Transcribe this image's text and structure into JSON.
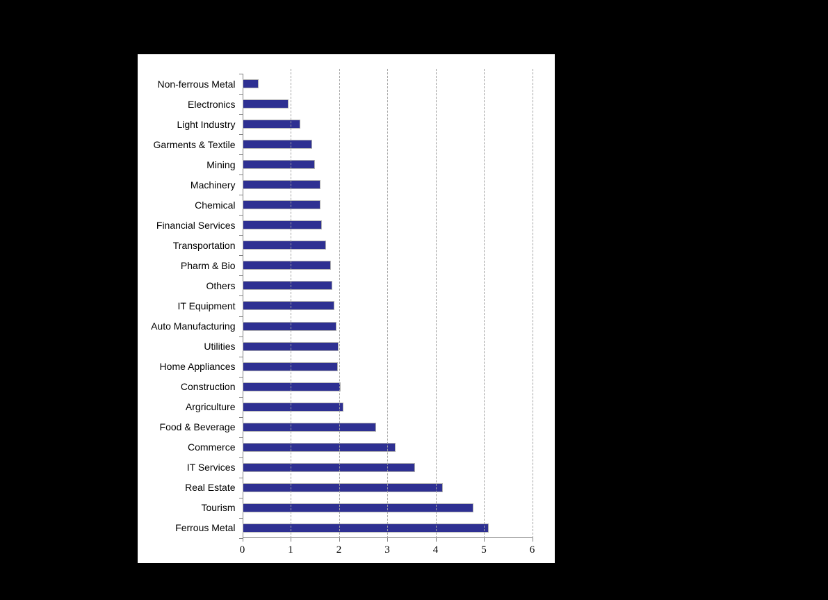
{
  "colors": {
    "page_background": "#000000",
    "panel_background": "#ffffff",
    "bar_fill": "#2e3092",
    "bar_border": "#b3b3b3",
    "gridline": "#a3a3a3",
    "axis": "#808080",
    "text": "#000000"
  },
  "chart_data": {
    "type": "bar",
    "orientation": "horizontal",
    "title": "",
    "xlabel": "",
    "ylabel": "",
    "xlim": [
      0,
      6
    ],
    "xticks": [
      0,
      1,
      2,
      3,
      4,
      5,
      6
    ],
    "grid": "vertical-dashed",
    "legend": "none",
    "categories": [
      "Non-ferrous Metal",
      "Electronics",
      "Light Industry",
      "Garments & Textile",
      "Mining",
      "Machinery",
      "Chemical",
      "Financial Services",
      "Transportation",
      "Pharm & Bio",
      "Others",
      "IT Equipment",
      "Auto Manufacturing",
      "Utilities",
      "Home Appliances",
      "Construction",
      "Argriculture",
      "Food & Beverage",
      "Commerce",
      "IT Services",
      "Real Estate",
      "Tourism",
      "Ferrous Metal"
    ],
    "values": [
      0.34,
      0.96,
      1.2,
      1.44,
      1.51,
      1.62,
      1.62,
      1.65,
      1.74,
      1.84,
      1.86,
      1.9,
      1.95,
      1.99,
      1.98,
      2.03,
      2.1,
      2.77,
      3.17,
      3.58,
      4.15,
      4.79,
      5.1
    ]
  }
}
